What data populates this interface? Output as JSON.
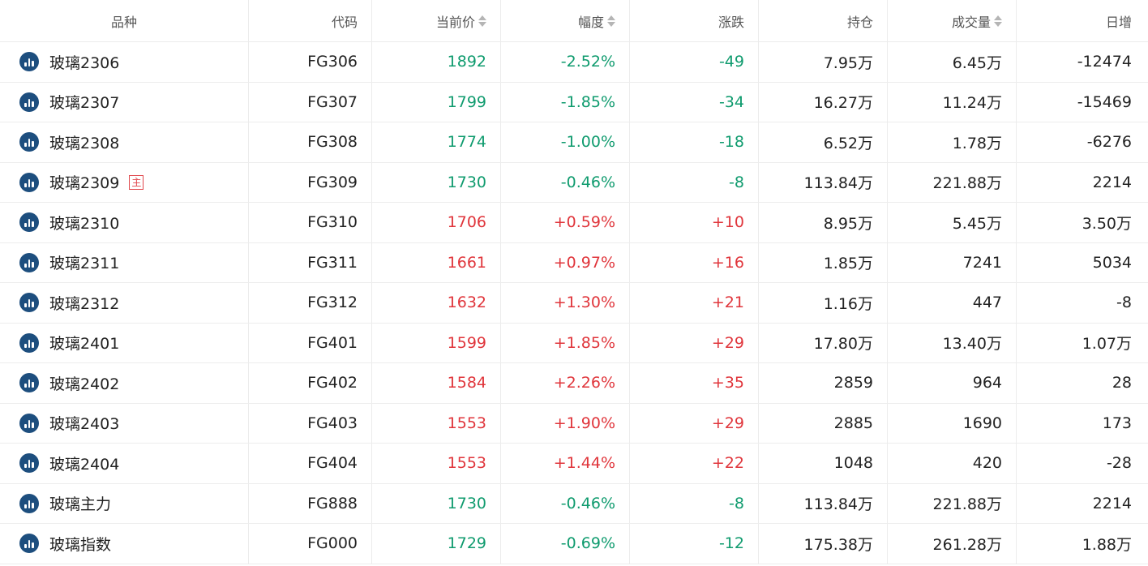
{
  "headers": {
    "name": "品种",
    "code": "代码",
    "price": "当前价",
    "pct": "幅度",
    "change": "涨跌",
    "position": "持仓",
    "volume": "成交量",
    "daily": "日增"
  },
  "main_badge": "主",
  "colors": {
    "up": "#e0353b",
    "down": "#0f9b6e",
    "icon": "#1d4e7e"
  },
  "rows": [
    {
      "name": "玻璃2306",
      "code": "FG306",
      "price": "1892",
      "pct": "-2.52%",
      "change": "-49",
      "position": "7.95万",
      "volume": "6.45万",
      "daily": "-12474",
      "dir": "down",
      "main": false
    },
    {
      "name": "玻璃2307",
      "code": "FG307",
      "price": "1799",
      "pct": "-1.85%",
      "change": "-34",
      "position": "16.27万",
      "volume": "11.24万",
      "daily": "-15469",
      "dir": "down",
      "main": false
    },
    {
      "name": "玻璃2308",
      "code": "FG308",
      "price": "1774",
      "pct": "-1.00%",
      "change": "-18",
      "position": "6.52万",
      "volume": "1.78万",
      "daily": "-6276",
      "dir": "down",
      "main": false
    },
    {
      "name": "玻璃2309",
      "code": "FG309",
      "price": "1730",
      "pct": "-0.46%",
      "change": "-8",
      "position": "113.84万",
      "volume": "221.88万",
      "daily": "2214",
      "dir": "down",
      "main": true
    },
    {
      "name": "玻璃2310",
      "code": "FG310",
      "price": "1706",
      "pct": "+0.59%",
      "change": "+10",
      "position": "8.95万",
      "volume": "5.45万",
      "daily": "3.50万",
      "dir": "up",
      "main": false
    },
    {
      "name": "玻璃2311",
      "code": "FG311",
      "price": "1661",
      "pct": "+0.97%",
      "change": "+16",
      "position": "1.85万",
      "volume": "7241",
      "daily": "5034",
      "dir": "up",
      "main": false
    },
    {
      "name": "玻璃2312",
      "code": "FG312",
      "price": "1632",
      "pct": "+1.30%",
      "change": "+21",
      "position": "1.16万",
      "volume": "447",
      "daily": "-8",
      "dir": "up",
      "main": false
    },
    {
      "name": "玻璃2401",
      "code": "FG401",
      "price": "1599",
      "pct": "+1.85%",
      "change": "+29",
      "position": "17.80万",
      "volume": "13.40万",
      "daily": "1.07万",
      "dir": "up",
      "main": false
    },
    {
      "name": "玻璃2402",
      "code": "FG402",
      "price": "1584",
      "pct": "+2.26%",
      "change": "+35",
      "position": "2859",
      "volume": "964",
      "daily": "28",
      "dir": "up",
      "main": false
    },
    {
      "name": "玻璃2403",
      "code": "FG403",
      "price": "1553",
      "pct": "+1.90%",
      "change": "+29",
      "position": "2885",
      "volume": "1690",
      "daily": "173",
      "dir": "up",
      "main": false
    },
    {
      "name": "玻璃2404",
      "code": "FG404",
      "price": "1553",
      "pct": "+1.44%",
      "change": "+22",
      "position": "1048",
      "volume": "420",
      "daily": "-28",
      "dir": "up",
      "main": false
    },
    {
      "name": "玻璃主力",
      "code": "FG888",
      "price": "1730",
      "pct": "-0.46%",
      "change": "-8",
      "position": "113.84万",
      "volume": "221.88万",
      "daily": "2214",
      "dir": "down",
      "main": false
    },
    {
      "name": "玻璃指数",
      "code": "FG000",
      "price": "1729",
      "pct": "-0.69%",
      "change": "-12",
      "position": "175.38万",
      "volume": "261.28万",
      "daily": "1.88万",
      "dir": "down",
      "main": false
    }
  ]
}
